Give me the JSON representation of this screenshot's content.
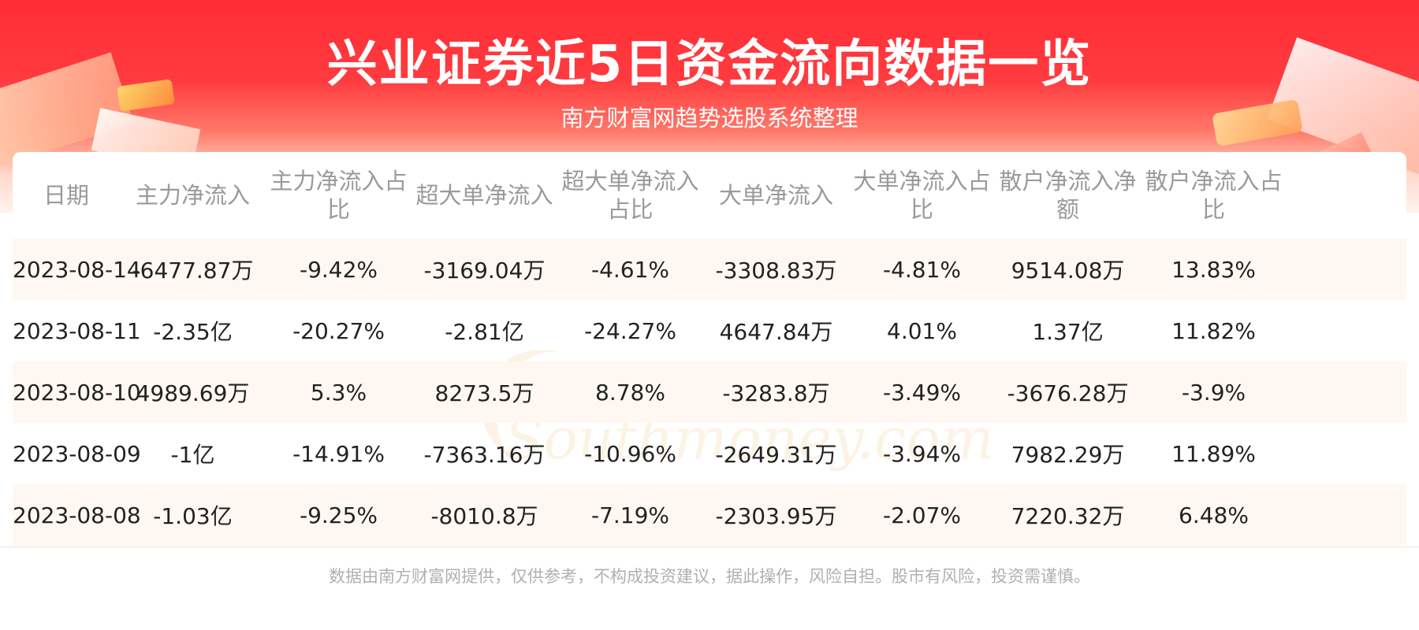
{
  "header": {
    "title": "兴业证券近5日资金流向数据一览",
    "subtitle": "南方财富网趋势选股系统整理"
  },
  "watermark": {
    "cn": "南方财富网",
    "en": "Southmoney.com"
  },
  "chart_data": {
    "type": "table",
    "title": "兴业证券近5日资金流向数据一览",
    "columns": [
      "日期",
      "主力净流入",
      "主力净流入占比",
      "超大单净流入",
      "超大单净流入占比",
      "大单净流入",
      "大单净流入占比",
      "散户净流入净额",
      "散户净流入占比"
    ],
    "rows": [
      [
        "2023-08-14",
        "-6477.87万",
        "-9.42%",
        "-3169.04万",
        "-4.61%",
        "-3308.83万",
        "-4.81%",
        "9514.08万",
        "13.83%"
      ],
      [
        "2023-08-11",
        "-2.35亿",
        "-20.27%",
        "-2.81亿",
        "-24.27%",
        "4647.84万",
        "4.01%",
        "1.37亿",
        "11.82%"
      ],
      [
        "2023-08-10",
        "4989.69万",
        "5.3%",
        "8273.5万",
        "8.78%",
        "-3283.8万",
        "-3.49%",
        "-3676.28万",
        "-3.9%"
      ],
      [
        "2023-08-09",
        "-1亿",
        "-14.91%",
        "-7363.16万",
        "-10.96%",
        "-2649.31万",
        "-3.94%",
        "7982.29万",
        "11.89%"
      ],
      [
        "2023-08-08",
        "-1.03亿",
        "-9.25%",
        "-8010.8万",
        "-7.19%",
        "-2303.95万",
        "-2.07%",
        "7220.32万",
        "6.48%"
      ]
    ]
  },
  "footer": {
    "disclaimer": "数据由南方财富网提供，仅供参考，不构成投资建议，据此操作，风险自担。股市有风险，投资需谨慎。"
  }
}
